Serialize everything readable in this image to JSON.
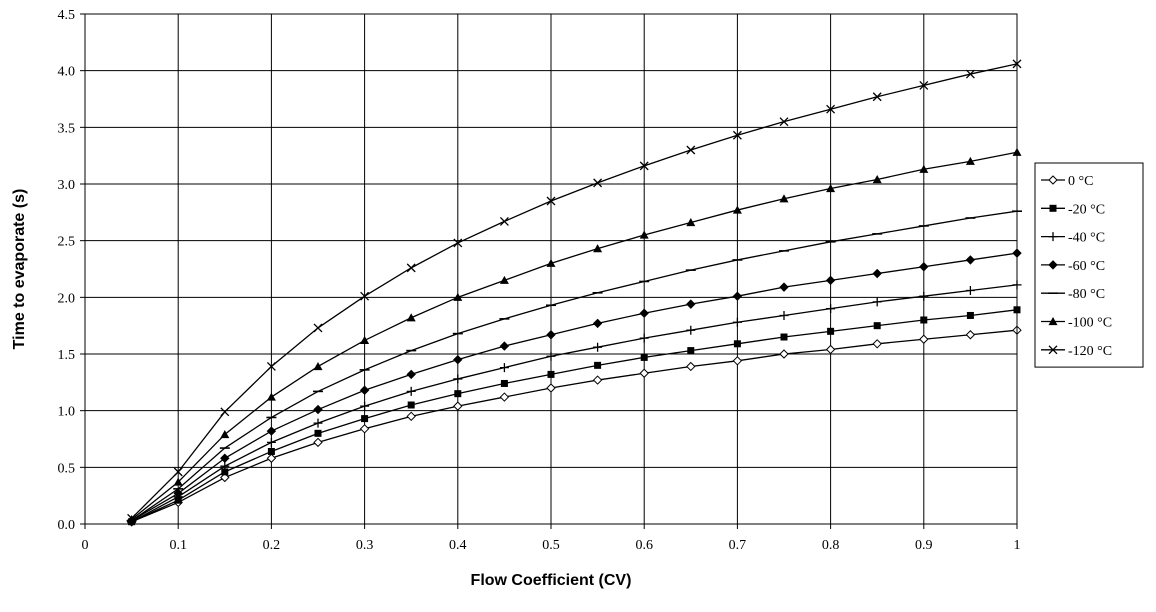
{
  "chart_data": {
    "type": "line",
    "title": "",
    "xlabel": "Flow Coefficient (CV)",
    "ylabel": "Time to evaporate (s)",
    "xlim": [
      0,
      1
    ],
    "ylim": [
      0,
      4.5
    ],
    "x_ticks": [
      "0",
      "0.1",
      "0.2",
      "0.3",
      "0.4",
      "0.5",
      "0.6",
      "0.7",
      "0.8",
      "0.9",
      "1"
    ],
    "y_ticks": [
      "0.0",
      "0.5",
      "1.0",
      "1.5",
      "2.0",
      "2.5",
      "3.0",
      "3.5",
      "4.0",
      "4.5"
    ],
    "grid": true,
    "legend_position": "right",
    "x": [
      0.05,
      0.1,
      0.15,
      0.2,
      0.25,
      0.3,
      0.35,
      0.4,
      0.45,
      0.5,
      0.55,
      0.6,
      0.65,
      0.7,
      0.75,
      0.8,
      0.85,
      0.9,
      0.95,
      1.0
    ],
    "series": [
      {
        "name": "0 °C",
        "marker": "diamond-open",
        "values": [
          0.02,
          0.19,
          0.41,
          0.58,
          0.72,
          0.84,
          0.95,
          1.04,
          1.12,
          1.2,
          1.27,
          1.33,
          1.39,
          1.44,
          1.5,
          1.54,
          1.59,
          1.63,
          1.67,
          1.71
        ]
      },
      {
        "name": "-20 °C",
        "marker": "square",
        "values": [
          0.02,
          0.21,
          0.46,
          0.64,
          0.8,
          0.93,
          1.05,
          1.15,
          1.24,
          1.32,
          1.4,
          1.47,
          1.53,
          1.59,
          1.65,
          1.7,
          1.75,
          1.8,
          1.84,
          1.89
        ]
      },
      {
        "name": "-40 °C",
        "marker": "plus",
        "values": [
          0.02,
          0.24,
          0.51,
          0.72,
          0.89,
          1.04,
          1.17,
          1.28,
          1.38,
          1.48,
          1.56,
          1.64,
          1.71,
          1.78,
          1.84,
          1.9,
          1.96,
          2.01,
          2.06,
          2.11
        ]
      },
      {
        "name": "-60 °C",
        "marker": "diamond",
        "values": [
          0.03,
          0.27,
          0.58,
          0.82,
          1.01,
          1.18,
          1.32,
          1.45,
          1.57,
          1.67,
          1.77,
          1.86,
          1.94,
          2.01,
          2.09,
          2.15,
          2.21,
          2.27,
          2.33,
          2.39
        ]
      },
      {
        "name": "-80 °C",
        "marker": "dash",
        "values": [
          0.03,
          0.31,
          0.67,
          0.94,
          1.17,
          1.36,
          1.53,
          1.68,
          1.81,
          1.93,
          2.04,
          2.14,
          2.24,
          2.33,
          2.41,
          2.49,
          2.56,
          2.63,
          2.7,
          2.76
        ]
      },
      {
        "name": "-100 °C",
        "marker": "triangle",
        "values": [
          0.04,
          0.37,
          0.79,
          1.12,
          1.39,
          1.62,
          1.82,
          2.0,
          2.15,
          2.3,
          2.43,
          2.55,
          2.66,
          2.77,
          2.87,
          2.96,
          3.04,
          3.13,
          3.2,
          3.28
        ]
      },
      {
        "name": "-120 °C",
        "marker": "x",
        "values": [
          0.05,
          0.46,
          0.99,
          1.39,
          1.73,
          2.01,
          2.26,
          2.48,
          2.67,
          2.85,
          3.01,
          3.16,
          3.3,
          3.43,
          3.55,
          3.66,
          3.77,
          3.87,
          3.97,
          4.06
        ]
      }
    ]
  }
}
